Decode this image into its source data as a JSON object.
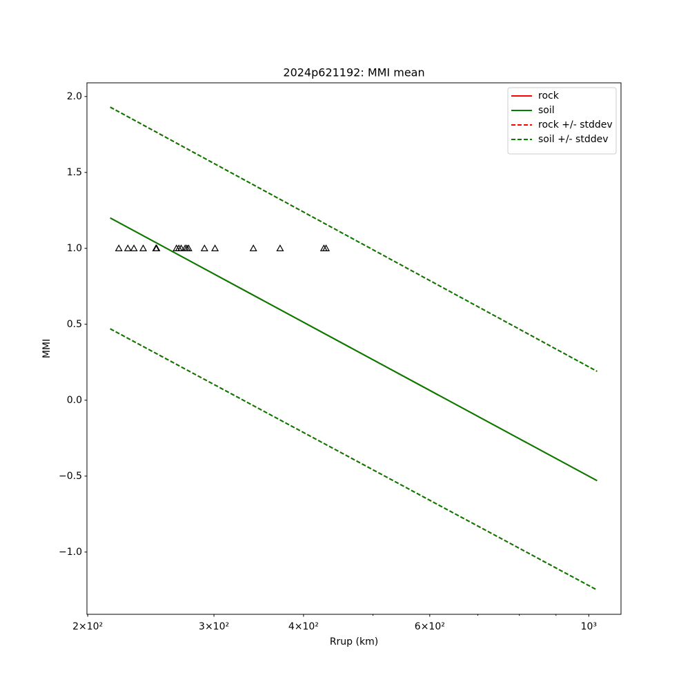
{
  "chart_data": {
    "type": "line",
    "title": "2024p621192: MMI mean",
    "x_label": "Rrup (km)",
    "y_label": "MMI",
    "x_scale": "log",
    "xlim": [
      199.5,
      1109
    ],
    "ylim": [
      -1.41,
      2.09
    ],
    "xticks": [
      {
        "value": 200,
        "label": "2×10²"
      },
      {
        "value": 300,
        "label": "3×10²"
      },
      {
        "value": 400,
        "label": "4×10²"
      },
      {
        "value": 600,
        "label": "6×10²"
      },
      {
        "value": 1000,
        "label": "10³"
      }
    ],
    "xminorticks": [
      500,
      700,
      800,
      900
    ],
    "yticks": [
      {
        "value": -1.0,
        "label": "−1.0"
      },
      {
        "value": -0.5,
        "label": "−0.5"
      },
      {
        "value": 0.0,
        "label": "0.0"
      },
      0.5,
      {
        "value": 1.0,
        "label": "1.0"
      },
      1.5,
      {
        "value": 2.0,
        "label": "2.0"
      }
    ],
    "grid": false,
    "legend": "upper right",
    "x": [
      215,
      1027
    ],
    "series": [
      {
        "name": "rock",
        "color": "#ff0000",
        "style": "solid",
        "values": [
          1.2,
          -0.53
        ]
      },
      {
        "name": "soil",
        "color": "#008000",
        "style": "solid",
        "values": [
          1.2,
          -0.53
        ]
      },
      {
        "name": "rock +/- stddev",
        "color": "#ff0000",
        "style": "dashed",
        "upper": [
          1.93,
          0.19
        ],
        "lower": [
          0.47,
          -1.25
        ]
      },
      {
        "name": "soil +/- stddev",
        "color": "#008000",
        "style": "dashed",
        "upper": [
          1.93,
          0.19
        ],
        "lower": [
          0.47,
          -1.25
        ]
      }
    ],
    "observations": {
      "marker": "triangle",
      "color": "#000000",
      "x": [
        221,
        227.5,
        232,
        239,
        249,
        249.5,
        266,
        268,
        270,
        273.5,
        275,
        276.5,
        291,
        301,
        340.5,
        371,
        427,
        430
      ],
      "values": [
        1,
        1,
        1,
        1,
        1,
        1,
        1,
        1,
        1,
        1,
        1,
        1,
        1,
        1,
        1,
        1,
        1,
        1
      ]
    }
  }
}
